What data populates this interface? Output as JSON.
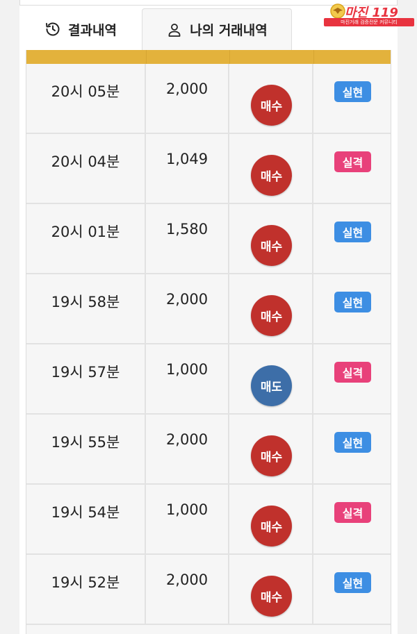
{
  "tabs": [
    {
      "label": "결과내역",
      "icon": "history-icon"
    },
    {
      "label": "나의 거래내역",
      "icon": "user-icon"
    }
  ],
  "logo": {
    "title": "마진 119",
    "subtitle": "마진거래 검증전문 커뮤니티"
  },
  "colors": {
    "buy": "#c0312c",
    "sell": "#3d6ea8",
    "win": "#3d8ee3",
    "loss": "#e8417a",
    "header_bar": "#e3b23c"
  },
  "trades": [
    {
      "time": "20시 05분",
      "amount": "2,000",
      "side": "매수",
      "side_type": "buy",
      "result": "실현",
      "result_type": "win"
    },
    {
      "time": "20시 04분",
      "amount": "1,049",
      "side": "매수",
      "side_type": "buy",
      "result": "실격",
      "result_type": "loss"
    },
    {
      "time": "20시 01분",
      "amount": "1,580",
      "side": "매수",
      "side_type": "buy",
      "result": "실현",
      "result_type": "win"
    },
    {
      "time": "19시 58분",
      "amount": "2,000",
      "side": "매수",
      "side_type": "buy",
      "result": "실현",
      "result_type": "win"
    },
    {
      "time": "19시 57분",
      "amount": "1,000",
      "side": "매도",
      "side_type": "sell",
      "result": "실격",
      "result_type": "loss"
    },
    {
      "time": "19시 55분",
      "amount": "2,000",
      "side": "매수",
      "side_type": "buy",
      "result": "실현",
      "result_type": "win"
    },
    {
      "time": "19시 54분",
      "amount": "1,000",
      "side": "매수",
      "side_type": "buy",
      "result": "실격",
      "result_type": "loss"
    },
    {
      "time": "19시 52분",
      "amount": "2,000",
      "side": "매수",
      "side_type": "buy",
      "result": "실현",
      "result_type": "win"
    }
  ]
}
